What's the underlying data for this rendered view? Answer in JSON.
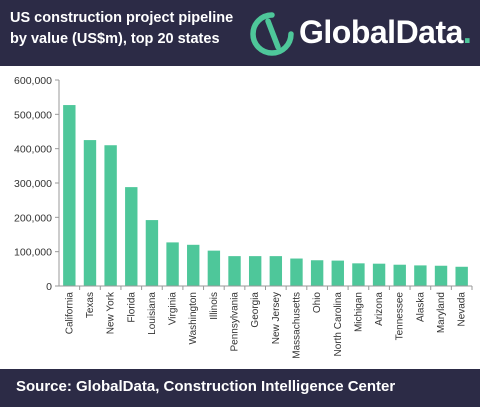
{
  "header": {
    "title": "US construction project pipeline by value (US$m), top 20 states",
    "logo_text": "GlobalData",
    "logo_dot": "."
  },
  "footer": {
    "source": "Source:  GlobalData, Construction Intelligence Center"
  },
  "colors": {
    "background_band": "#2c2b46",
    "bar": "#4ec79a",
    "axis": "#999999"
  },
  "chart_data": {
    "type": "bar",
    "title": "US construction project pipeline by value (US$m), top 20 states",
    "xlabel": "",
    "ylabel": "",
    "ylim": [
      0,
      600000
    ],
    "yticks": [
      0,
      100000,
      200000,
      300000,
      400000,
      500000,
      600000
    ],
    "ytick_labels": [
      "0",
      "100,000",
      "200,000",
      "300,000",
      "400,000",
      "500,000",
      "600,000"
    ],
    "grid": false,
    "categories": [
      "California",
      "Texas",
      "New York",
      "Florida",
      "Louisiana",
      "Virginia",
      "Washington",
      "Illinois",
      "Pennsylvania",
      "Georgia",
      "New Jersey",
      "Massachusetts",
      "Ohio",
      "North Carolina",
      "Michigan",
      "Arizona",
      "Tennessee",
      "Alaska",
      "Maryland",
      "Nevada"
    ],
    "values": [
      527000,
      425000,
      410000,
      288000,
      192000,
      127000,
      120000,
      103000,
      87000,
      87000,
      87000,
      80000,
      75000,
      74000,
      66000,
      65000,
      62000,
      60000,
      59000,
      56000
    ]
  }
}
